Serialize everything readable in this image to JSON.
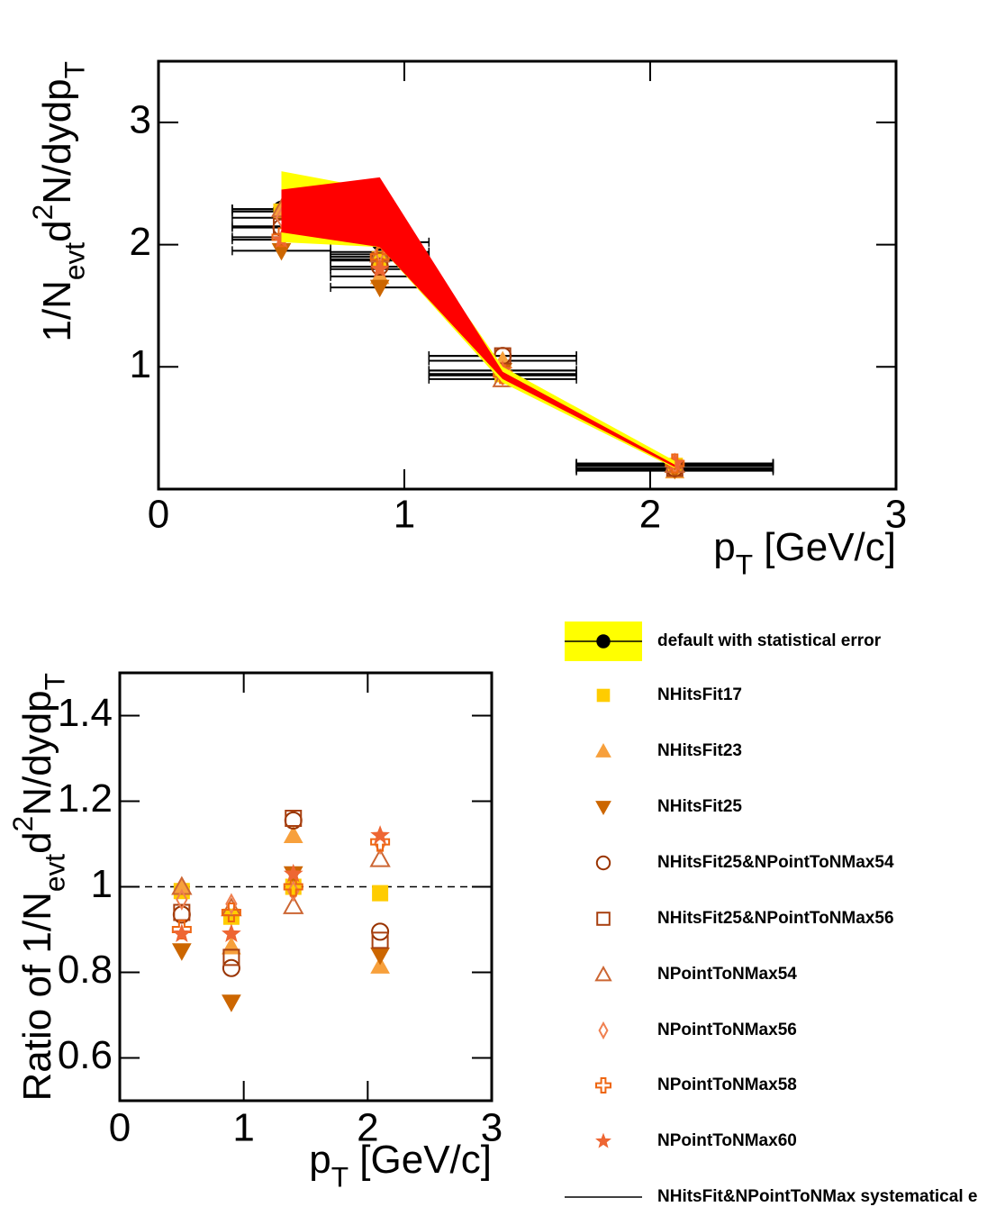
{
  "chart_data": [
    {
      "type": "scatter",
      "x": [
        0.5,
        0.9,
        1.4,
        2.1
      ],
      "xerr": [
        0.2,
        0.2,
        0.3,
        0.4
      ],
      "xlim": [
        0,
        3
      ],
      "ylim": [
        0,
        3.5
      ],
      "xticks": [
        0,
        1,
        2,
        3
      ],
      "yticks": [
        1,
        2,
        3
      ],
      "xlabel": [
        {
          "t": "p"
        },
        {
          "sub": "T"
        },
        {
          "t": " [GeV/c]"
        }
      ],
      "ylabel": [
        {
          "t": "1/N"
        },
        {
          "sub": "evt"
        },
        {
          "t": "d"
        },
        {
          "sup": "2"
        },
        {
          "t": "N/dydp"
        },
        {
          "sub": "T"
        }
      ],
      "bands": [
        {
          "color": "#ffff00",
          "low": [
            2.02,
            1.98,
            0.87,
            0.17
          ],
          "high": [
            2.6,
            2.45,
            1.0,
            0.23
          ]
        },
        {
          "name": "NHitsFit&NPointToNMax systematical e",
          "color": "#ff0000",
          "low": [
            2.1,
            1.98,
            0.9,
            0.18
          ],
          "high": [
            2.45,
            2.55,
            0.96,
            0.2
          ]
        }
      ],
      "series": [
        {
          "name": "default with statistical error",
          "color": "#000000",
          "marker": "circle",
          "values": [
            2.29,
            2.02,
            0.94,
            0.19
          ]
        },
        {
          "name": "NHitsFit17",
          "color": "#ffcc00",
          "marker": "square",
          "values": [
            2.27,
            1.88,
            0.94,
            0.19
          ]
        },
        {
          "name": "NHitsFit23",
          "color": "#f7a03c",
          "marker": "triangle-up",
          "values": [
            2.29,
            1.74,
            1.05,
            0.15
          ]
        },
        {
          "name": "NHitsFit25",
          "color": "#cc6600",
          "marker": "triangle-down",
          "values": [
            1.95,
            1.65,
            0.97,
            0.16
          ]
        },
        {
          "name": "NHitsFit25&NPointToNMax54",
          "color": "#993300",
          "marker": "circle-open",
          "values": [
            2.14,
            1.82,
            1.09,
            0.17
          ]
        },
        {
          "name": "NHitsFit25&NPointToNMax56",
          "color": "#a84010",
          "marker": "square-open",
          "values": [
            2.15,
            1.87,
            1.09,
            0.17
          ]
        },
        {
          "name": "NPointToNMax54",
          "color": "#cc6633",
          "marker": "triangle-open",
          "values": [
            2.29,
            1.92,
            0.9,
            0.2
          ]
        },
        {
          "name": "NPointToNMax56",
          "color": "#f08050",
          "marker": "diamond-open",
          "values": [
            2.22,
            1.94,
            0.93,
            0.21
          ]
        },
        {
          "name": "NPointToNMax58",
          "color": "#ee6611",
          "marker": "cross-open",
          "values": [
            2.06,
            1.9,
            0.94,
            0.21
          ]
        },
        {
          "name": "NPointToNMax60",
          "color": "#ee6633",
          "marker": "star",
          "values": [
            2.04,
            1.8,
            0.97,
            0.21
          ]
        }
      ]
    },
    {
      "type": "scatter",
      "x": [
        0.5,
        0.9,
        1.4,
        2.1
      ],
      "xlim": [
        0,
        3
      ],
      "ylim": [
        0.5,
        1.5
      ],
      "xticks": [
        0,
        1,
        2,
        3
      ],
      "yticks": [
        0.6,
        0.8,
        1,
        1.2,
        1.4
      ],
      "hline": 1,
      "xlabel": [
        {
          "t": "p"
        },
        {
          "sub": "T"
        },
        {
          "t": " [GeV/c]"
        }
      ],
      "ylabel": [
        {
          "t": "Ratio of 1/N"
        },
        {
          "sub": "evt"
        },
        {
          "t": "d"
        },
        {
          "sup": "2"
        },
        {
          "t": "N/dydp"
        },
        {
          "sub": "T"
        }
      ],
      "series": [
        {
          "color": "#ffcc00",
          "marker": "square",
          "values": [
            0.99,
            0.93,
            1.0,
            0.985
          ]
        },
        {
          "color": "#f7a03c",
          "marker": "triangle-up",
          "values": [
            1.0,
            0.86,
            1.12,
            0.815
          ]
        },
        {
          "color": "#cc6600",
          "marker": "triangle-down",
          "values": [
            0.85,
            0.73,
            1.03,
            0.84
          ]
        },
        {
          "color": "#993300",
          "marker": "circle-open",
          "values": [
            0.935,
            0.81,
            1.155,
            0.895
          ]
        },
        {
          "color": "#a84010",
          "marker": "square-open",
          "values": [
            0.94,
            0.835,
            1.16,
            0.875
          ]
        },
        {
          "color": "#cc6633",
          "marker": "triangle-open",
          "values": [
            1.0,
            0.95,
            0.955,
            1.065
          ]
        },
        {
          "color": "#f08050",
          "marker": "diamond-open",
          "values": [
            0.97,
            0.96,
            0.99,
            1.1
          ]
        },
        {
          "color": "#ee6611",
          "marker": "cross-open",
          "values": [
            0.9,
            0.94,
            1.0,
            1.105
          ]
        },
        {
          "color": "#ee6633",
          "marker": "star",
          "values": [
            0.89,
            0.89,
            1.03,
            1.12
          ]
        }
      ]
    }
  ]
}
